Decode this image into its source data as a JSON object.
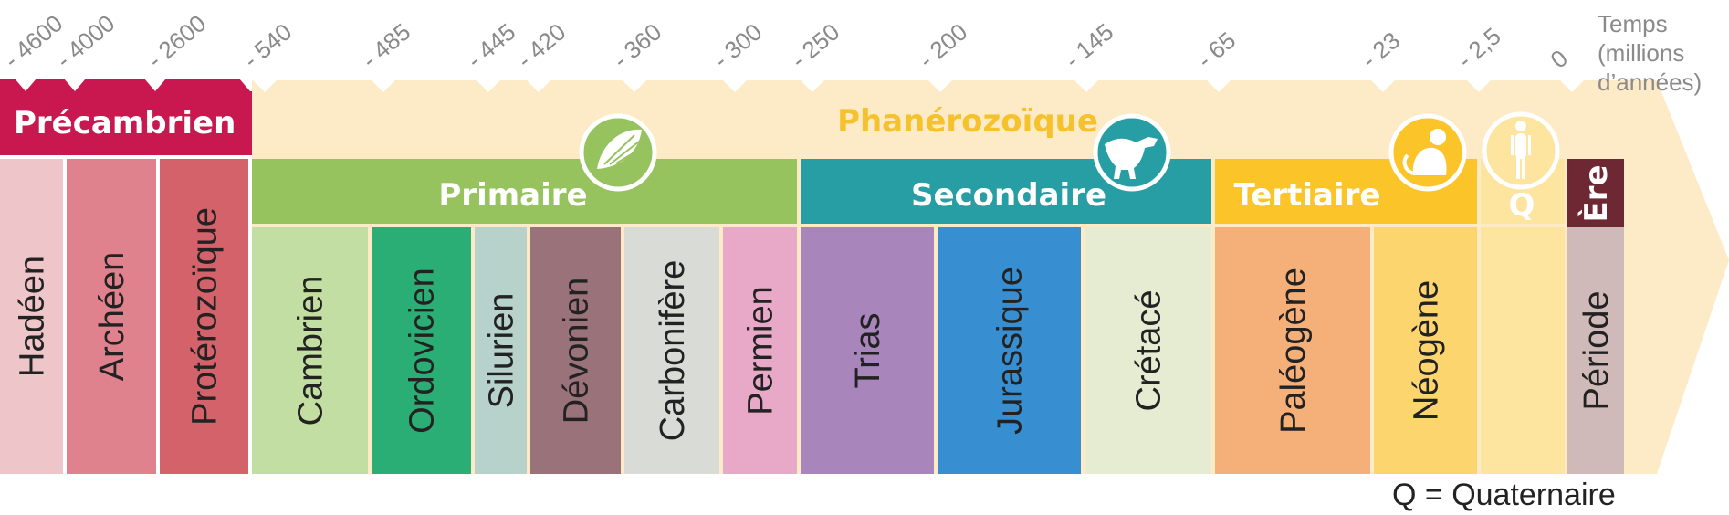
{
  "time_ticks": [
    "- 4600",
    "- 4000",
    "- 2600",
    "- 540",
    "- 485",
    "- 445",
    "- 420",
    "- 360",
    "- 300",
    "- 250",
    "- 200",
    "- 145",
    "- 65",
    "- 23",
    "- 2,5",
    "0"
  ],
  "axis_label": [
    "Temps",
    "(millions",
    "d’années)"
  ],
  "eons": {
    "precambrien": "Précambrien",
    "phanerozoique": "Phanérozoïque"
  },
  "eras": {
    "primaire": "Primaire",
    "secondaire": "Secondaire",
    "tertiaire": "Tertiaire",
    "quaternaire_abbr": "Q"
  },
  "periods": {
    "hadeen": "Hadéen",
    "archeen": "Archéen",
    "proterozoique": "Protérozoïque",
    "cambrien": "Cambrien",
    "ordovicien": "Ordovicien",
    "silurien": "Silurien",
    "devonien": "Dévonien",
    "carbonifere": "Carbonifère",
    "permien": "Permien",
    "trias": "Trias",
    "jurassique": "Jurassique",
    "cretace": "Crétacé",
    "paleogene": "Paléogène",
    "neogene": "Néogène"
  },
  "legend": {
    "era": "Ère",
    "period": "Période"
  },
  "note": "Q = Quaternaire",
  "icons": [
    "trilobite-icon",
    "dinosaur-icon",
    "monkey-icon",
    "human-icon"
  ],
  "colors": {
    "precambrien": "#c8184f",
    "phanerozoique_band": "#fdebc8",
    "phanerozoique_text": "#f5c22e",
    "primaire": "#96c35d",
    "secondaire": "#279ea3",
    "tertiaire": "#fbc52a",
    "quaternaire": "#fde49f",
    "legend_era": "#6e2834",
    "legend_period": "#cfbab9"
  }
}
